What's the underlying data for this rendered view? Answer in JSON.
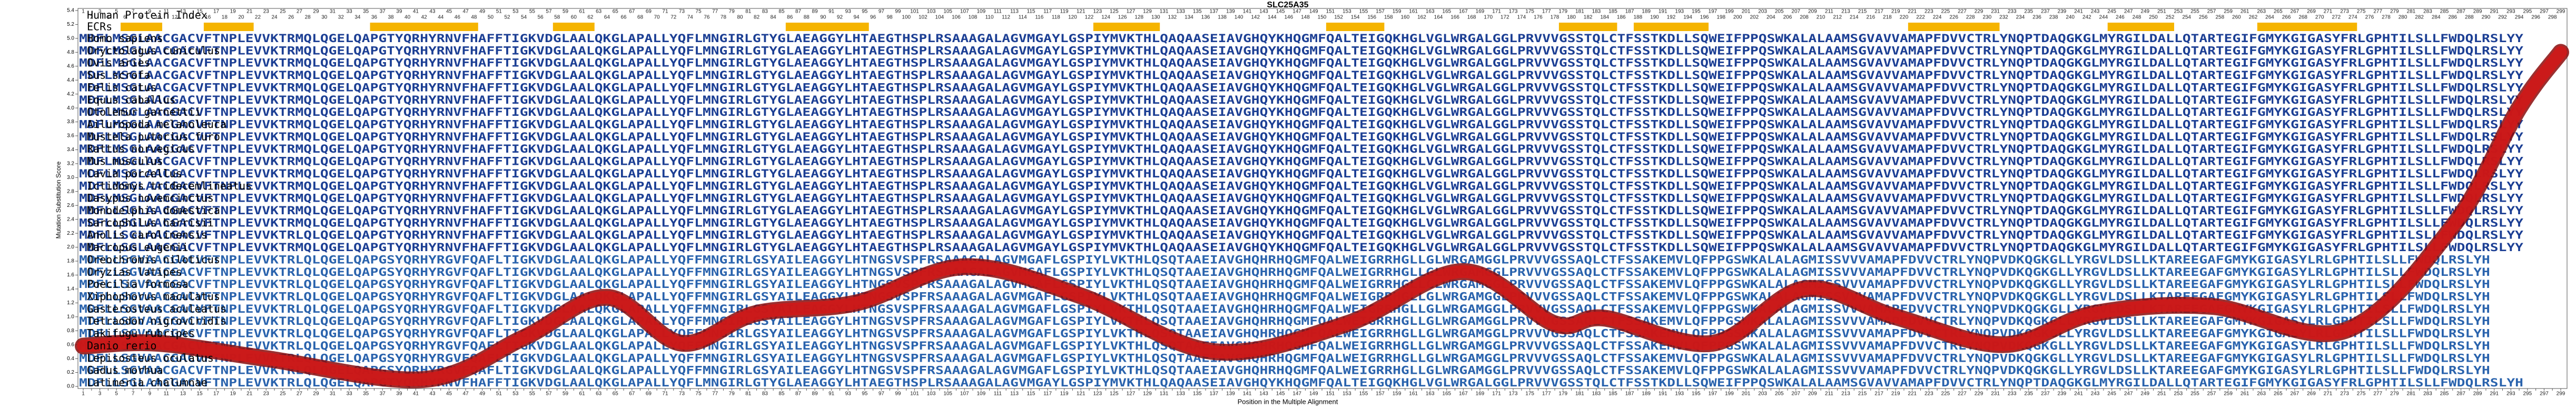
{
  "chart_data": {
    "type": "line",
    "title": "SLC25A35",
    "row_labels": [
      "Human Protein Index",
      "ECRs"
    ],
    "xlabel": "Position in the Multiple Alignment",
    "ylabel": "Mutation Substitution Score",
    "xlim": [
      1,
      299
    ],
    "ylim": [
      0,
      5.4
    ],
    "yticks": [
      {
        "value": 0,
        "label": "0.0"
      },
      {
        "value": 0.2,
        "label": "0.2"
      },
      {
        "value": 0.4,
        "label": "0.4"
      },
      {
        "value": 0.6,
        "label": "0.6"
      },
      {
        "value": 0.8,
        "label": "0.8"
      },
      {
        "value": 1,
        "label": "1.0"
      },
      {
        "value": 1.2,
        "label": "1.2"
      },
      {
        "value": 1.4,
        "label": "1.4"
      },
      {
        "value": 1.6,
        "label": "1.6"
      },
      {
        "value": 1.8,
        "label": "1.8"
      },
      {
        "value": 2,
        "label": "2.0"
      },
      {
        "value": 2.2,
        "label": "2.2"
      },
      {
        "value": 2.4,
        "label": "2.4"
      },
      {
        "value": 2.6,
        "label": "2.6"
      },
      {
        "value": 2.8,
        "label": "2.8"
      },
      {
        "value": 3,
        "label": "3.0"
      },
      {
        "value": 3.2,
        "label": "3.2"
      },
      {
        "value": 3.4,
        "label": "3.4"
      },
      {
        "value": 3.6,
        "label": "3.6"
      },
      {
        "value": 3.8,
        "label": "3.8"
      },
      {
        "value": 4,
        "label": "4.0"
      },
      {
        "value": 4.2,
        "label": "4.2"
      },
      {
        "value": 4.4,
        "label": "4.4"
      },
      {
        "value": 4.6,
        "label": "4.6"
      },
      {
        "value": 4.8,
        "label": "4.8"
      },
      {
        "value": 5,
        "label": "5.0"
      },
      {
        "value": 5.2,
        "label": "5.2"
      },
      {
        "value": 5.4,
        "label": "5.4"
      }
    ],
    "xticks": [
      1,
      2,
      3,
      4,
      5,
      6,
      7,
      8,
      9,
      10,
      11,
      12,
      13,
      14,
      15,
      16,
      17,
      18,
      19,
      20,
      21,
      22,
      23,
      24,
      25,
      26,
      27,
      28,
      29,
      30,
      31,
      32,
      33,
      34,
      35,
      36,
      37,
      38,
      39,
      40,
      41,
      42,
      43,
      44,
      45,
      46,
      47,
      48,
      49,
      50,
      51,
      52,
      53,
      54,
      55,
      56,
      57,
      58,
      59,
      60,
      61,
      62,
      63,
      64,
      65,
      66,
      67,
      68,
      69,
      70,
      71,
      72,
      73,
      74,
      75,
      76,
      77,
      78,
      79,
      80,
      81,
      82,
      83,
      84,
      85,
      86,
      87,
      88,
      89,
      90,
      91,
      92,
      93,
      94,
      95,
      96,
      97,
      98,
      99,
      100,
      101,
      102,
      103,
      104,
      105,
      106,
      107,
      108,
      109,
      110,
      111,
      112,
      113,
      114,
      115,
      116,
      117,
      118,
      119,
      120,
      121,
      122,
      123,
      124,
      125,
      126,
      127,
      128,
      129,
      130,
      131,
      132,
      133,
      134,
      135,
      136,
      137,
      138,
      139,
      140,
      141,
      142,
      143,
      144,
      145,
      146,
      147,
      148,
      149,
      150,
      151,
      152,
      153,
      154,
      155,
      156,
      157,
      158,
      159,
      160,
      161,
      162,
      163,
      164,
      165,
      166,
      167,
      168,
      169,
      170,
      171,
      172,
      173,
      174,
      175,
      176,
      177,
      178,
      179,
      180,
      181,
      182,
      183,
      184,
      185,
      186,
      187,
      188,
      189,
      190,
      191,
      192,
      193,
      194,
      195,
      196,
      197,
      198,
      199,
      200,
      201,
      202,
      203,
      204,
      205,
      206,
      207,
      208,
      209,
      210,
      211,
      212,
      213,
      214,
      215,
      216,
      217,
      218,
      219,
      220,
      221,
      222,
      223,
      224,
      225,
      226,
      227,
      228,
      229,
      230,
      231,
      232,
      233,
      234,
      235,
      236,
      237,
      238,
      239,
      240,
      241,
      242,
      243,
      244,
      245,
      246,
      247,
      248,
      249,
      250,
      251,
      252,
      253,
      254,
      255,
      256,
      257,
      258,
      259,
      260,
      261,
      262,
      263,
      264,
      265,
      266,
      267,
      268,
      269,
      270,
      271,
      272,
      273,
      274,
      275,
      276,
      277,
      278,
      279,
      280,
      281,
      282,
      283,
      284,
      285,
      286,
      287,
      288,
      289,
      290,
      291,
      292,
      293,
      294,
      295,
      296,
      297,
      298,
      299
    ],
    "ecrs": [
      [
        6,
        10
      ],
      [
        16,
        21
      ],
      [
        36,
        48
      ],
      [
        58,
        62
      ],
      [
        86,
        95
      ],
      [
        123,
        130
      ],
      [
        151,
        157
      ],
      [
        179,
        185
      ],
      [
        188,
        196
      ],
      [
        221,
        231
      ],
      [
        245,
        252
      ],
      [
        263,
        274
      ]
    ],
    "ecr_color": "#f5b400",
    "species": [
      "Homo sapiens",
      "Oryctolagus cuniculus",
      "Ovis aries",
      "Sus scrofa",
      "Felis catus",
      "Equus caballus",
      "Otolemur garnettii",
      "Ailuropoda melanoleuca",
      "Mustela putorius furo",
      "Rattus norvegicus",
      "Mus musculus",
      "Cavia porcellus",
      "Ictidomys tridecemlineatus",
      "Dasypus novemcinctus",
      "Monodelphis domestica",
      "Sarcophilus harrisii",
      "Anolis carolinensis",
      "Macropus eugenii",
      "Oreochromis niloticus",
      "Oryzias latipes",
      "Poecilia formosa",
      "Xiphophorus maculatus",
      "Gasterosteus aculeatus",
      "Tetraodon nigroviridis",
      "Takifugu rubripes",
      "Danio rerio",
      "Lepisosteus oculatus",
      "Gadus morhua",
      "Latimeria chalumnae"
    ],
    "sequences": [
      "MDFLMSGLAACGACVFTNPLEVVKTRMQLQGELQAPGTYQRHYRNVFHAFFTIGKVDGLAALQKGLAPALLYQFLMNGIRLGTYGLAEAGGYLHTAEGTHSPLRSAAAGALAGVMGAYLGSPIYMVKTHLQAQAASEIAVGHQYKHQGMFQALTEIGQKHGLVGLWRGALGGLPRVVVGSSTQLCTFSSTKDLLSQWEIFPPQSWKALALAAMSGVAVVAMAPFDVVCTRLYNQPTDAQGKGLMYRGILDALLQTARTEGIFGMYKGIGASYFRLGPHTILSLLFWDQLRSLYY",
      "MDFLMSGLAACGACVFTNPLEVVKTRMQLQGELQAPGTYQRHYRNVFHAFFTIGKVDGLAALQKGLAPALLYQFLMNGIRLGTYGLAEAGGYLHTAEGTHSPLRSAAAGALAGVMGAYLGSPIYMVKTHLQAQAASEIAVGHQYKHQGMFQALTEIGQKHGLVGLWRGALGGLPRVVVGSSTQLCTFSSTKDLLSQWEIFPPQSWKALALAAMSGVAVVAMAPFDVVCTRLYNQPTDAQGKGLMYRGILDALLQTARTEGIFGMYKGIGASYFRLGPHTILSLLFWDQLRSLYY",
      "MDFLMSGLAACGACVFTNPLEVVKTRMQLQGELQAPGTYQRHYRNVFHAFFTIGKVDGLAALQKGLAPALLYQFLMNGIRLGTYGLAEAGGYLHTAEGTHSPLRSAAAGALAGVMGAYLGSPIYMVKTHLQAQAASEIAVGHQYKHQGMFQALTEIGQKHGLVGLWRGALGGLPRVVVGSSTQLCTFSSTKDLLSQWEIFPPQSWKALALAAMSGVAVVAMAPFDVVCTRLYNQPTDAQGKGLMYRGILDALLQTARTEGIFGMYKGIGASYFRLGPHTILSLLFWDQLRSLYY",
      "MDFLMSGLAACGACVFTNPLEVVKTRMQLQGELQAPGTYQRHYRNVFHAFFTIGKVDGLAALQKGLAPALLYQFLMNGIRLGTYGLAEAGGYLHTAEGTHSPLRSAAAGALAGVMGAYLGSPIYMVKTHLQAQAASEIAVGHQYKHQGMFQALTEIGQKHGLVGLWRGALGGLPRVVVGSSTQLCTFSSTKDLLSQWEIFPPQSWKALALAAMSGVAVVAMAPFDVVCTRLYNQPTDAQGKGLMYRGILDALLQTARTEGIFGMYKGIGASYFRLGPHTILSLLFWDQLRSLYY",
      "MDFLMSGLAACGACVFTNPLEVVKTRMQLQGELQAPGTYQRHYRNVFHAFFTIGKVDGLAALQKGLAPALLYQFLMNGIRLGTYGLAEAGGYLHTAEGTHSPLRSAAAGALAGVMGAYLGSPIYMVKTHLQAQAASEIAVGHQYKHQGMFQALTEIGQKHGLVGLWRGALGGLPRVVVGSSTQLCTFSSTKDLLSQWEIFPPQSWKALALAAMSGVAVVAMAPFDVVCTRLYNQPTDAQGKGLMYRGILDALLQTARTEGIFGMYKGIGASYFRLGPHTILSLLFWDQLRSLYY",
      "MDFLMSGLAACGACVFTNPLEVVKTRMQLQGELQAPGTYQRHYRNVFHAFFTIGKVDGLAALQKGLAPALLYQFLMNGIRLGTYGLAEAGGYLHTAEGTHSPLRSAAAGALAGVMGAYLGSPIYMVKTHLQAQAASEIAVGHQYKHQGMFQALTEIGQKHGLVGLWRGALGGLPRVVVGSSTQLCTFSSTKDLLSQWEIFPPQSWKALALAAMSGVAVVAMAPFDVVCTRLYNQPTDAQGKGLMYRGILDALLQTARTEGIFGMYKGIGASYFRLGPHTILSLLFWDQLRSLYY",
      "MDFLMSGLAACGACVFTNPLEVVKTRMQLQGELQAPGTYQRHYRNVFHAFFTIGKVDGLAALQKGLAPALLYQFLMNGIRLGTYGLAEAGGYLHTAEGTHSPLRSAAAGALAGVMGAYLGSPIYMVKTHLQAQAASEIAVGHQYKHQGMFQALTEIGQKHGLVGLWRGALGGLPRVVVGSSTQLCTFSSTKDLLSQWEIFPPQSWKALALAAMSGVAVVAMAPFDVVCTRLYNQPTDAQGKGLMYRGILDALLQTARTEGIFGMYKGIGASYFRLGPHTILSLLFWDQLRSLYY",
      "MDFLMSGLAACGACVFTNPLEVVKTRMQLQGELQAPGTYQRHYRNVFHAFFTIGKVDGLAALQKGLAPALLYQFLMNGIRLGTYGLAEAGGYLHTAEGTHSPLRSAAAGALAGVMGAYLGSPIYMVKTHLQAQAASEIAVGHQYKHQGMFQALTEIGQKHGLVGLWRGALGGLPRVVVGSSTQLCTFSSTKDLLSQWEIFPPQSWKALALAAMSGVAVVAMAPFDVVCTRLYNQPTDAQGKGLMYRGILDALLQTARTEGIFGMYKGIGASYFRLGPHTILSLLFWDQLRSLYY",
      "MDFLMSGLAACGACVFTNPLEVVKTRMQLQGELQAPGTYQRHYRNVFHAFFTIGKVDGLAALQKGLAPALLYQFLMNGIRLGTYGLAEAGGYLHTAEGTHSPLRSAAAGALAGVMGAYLGSPIYMVKTHLQAQAASEIAVGHQYKHQGMFQALTEIGQKHGLVGLWRGALGGLPRVVVGSSTQLCTFSSTKDLLSQWEIFPPQSWKALALAAMSGVAVVAMAPFDVVCTRLYNQPTDAQGKGLMYRGILDALLQTARTEGIFGMYKGIGASYFRLGPHTILSLLFWDQLRSLYY",
      "MDFLMSGLAACGACVFTNPLEVVKTRMQLQGELQAPGTYQRHYRNVFHAFFTIGKVDGLAALQKGLAPALLYQFLMNGIRLGTYGLAEAGGYLHTAEGTHSPLRSAAAGALAGVMGAYLGSPIYMVKTHLQAQAASEIAVGHQYKHQGMFQALTEIGQKHGLVGLWRGALGGLPRVVVGSSTQLCTFSSTKDLLSQWEIFPPQSWKALALAAMSGVAVVAMAPFDVVCTRLYNQPTDAQGKGLMYRGILDALLQTARTEGIFGMYKGIGASYFRLGPHTILSLLFWDQLRSLYY",
      "MDFLMSGLAACGACVFTNPLEVVKTRMQLQGELQAPGTYQRHYRNVFHAFFTIGKVDGLAALQKGLAPALLYQFLMNGIRLGTYGLAEAGGYLHTAEGTHSPLRSAAAGALAGVMGAYLGSPIYMVKTHLQAQAASEIAVGHQYKHQGMFQALTEIGQKHGLVGLWRGALGGLPRVVVGSSTQLCTFSSTKDLLSQWEIFPPQSWKALALAAMSGVAVVAMAPFDVVCTRLYNQPTDAQGKGLMYRGILDALLQTARTEGIFGMYKGIGASYFRLGPHTILSLLFWDQLRSLYY",
      "MDFLMSGLAACGACVFTNPLEVVKTRMQLQGELQAPGTYQRHYRNVFHAFFTIGKVDGLAALQKGLAPALLYQFLMNGIRLGTYGLAEAGGYLHTAEGTHSPLRSAAAGALAGVMGAYLGSPIYMVKTHLQAQAASEIAVGHQYKHQGMFQALTEIGQKHGLVGLWRGALGGLPRVVVGSSTQLCTFSSTKDLLSQWEIFPPQSWKALALAAMSGVAVVAMAPFDVVCTRLYNQPTDAQGKGLMYRGILDALLQTARTEGIFGMYKGIGASYFRLGPHTILSLLFWDQLRSLYY",
      "MDFLMSGLAACGACVFTNPLEVVKTRMQLQGELQAPGTYQRHYRNVFHAFFTIGKVDGLAALQKGLAPALLYQFLMNGIRLGTYGLAEAGGYLHTAEGTHSPLRSAAAGALAGVMGAYLGSPIYMVKTHLQAQAASEIAVGHQYKHQGMFQALTEIGQKHGLVGLWRGALGGLPRVVVGSSTQLCTFSSTKDLLSQWEIFPPQSWKALALAAMSGVAVVAMAPFDVVCTRLYNQPTDAQGKGLMYRGILDALLQTARTEGIFGMYKGIGASYFRLGPHTILSLLFWDQLRSLYY",
      "MDFLMSGLAACGACVFTNPLEVVKTRMQLQGELQAPGTYQRHYRNVFHAFFTIGKVDGLAALQKGLAPALLYQFLMNGIRLGTYGLAEAGGYLHTAEGTHSPLRSAAAGALAGVMGAYLGSPIYMVKTHLQAQAASEIAVGHQYKHQGMFQALTEIGQKHGLVGLWRGALGGLPRVVVGSSTQLCTFSSTKDLLSQWEIFPPQSWKALALAAMSGVAVVAMAPFDVVCTRLYNQPTDAQGKGLMYRGILDALLQTARTEGIFGMYKGIGASYFRLGPHTILSLLFWDQLRSLYY",
      "MDFLLSGLAACGACVFTNPLEVVKTRMQLQGELQAPGTYQRHYRNVFHAFFTIGKVDGLAALQKGLAPALLYQFLMNGIRLGTYGLAEAGGYLHTAEGTHSPLRSAAAGALAGVMGAYLGSPIYMVKTHLQAQAASEIAVGHQYKHQGMFQALTEIGQKHGLVGLWRGALGGLPRVVVGSSTQLCTFSSTKDLLSQWEIFPPQSWKALALAAMSGVAVVAMAPFDVVCTRLYNQPTDAQGKGLMYRGILDALLQTARTEGIFGMYKGIGASYFRLGPHTILSLLFWDQLRSLYY",
      "MDFLLSGLAACGACVFTNPLEVVKTRMQLQGELQAPGTYQRHYRNVFHAFFTIGKVDGLAALQKGLAPALLYQFLMNGIRLGTYGLAEAGGYLHTAEGTHSPLRSAAAGALAGVMGAYLGSPIYMVKTHLQAQAASEIAVGHQYKHQGMFQALTEIGQKHGLVGLWRGALGGLPRVVVGSSTQLCTFSSTKDLLSQWEIFPPQSWKALALAAMSGVAVVAMAPFDVVCTRLYNQPTDAQGKGLMYRGILDALLQTARTEGIFGMYKGIGASYFRLGPHTILSLLFWDQLRSLYY",
      "MDFLLSGLAACGACVFTNPLEVVKTRLQLQGELQAPGTYQRHYRNVFHAFFTIGKVDGLAALQKGLAPALLYQFLMNGIRLGTYGLAEAGGYLHTAEGTHSPLRSAAAGALAGVMGAYLGSPIYMVKTHLQAQAASEIAVGHQYKHQGMFQALTEIGQKHGLVGLWRGALGGLPRVVVGSSTQLCTFSSTKDLLSQWEIFPPQSWKALALAAMSGVAVVAMAPFDVVCTRLYNQPTDAQGKGLMYRGILDALLQTARTEGIFGMYKGIGASYFRLGPHTILSLLFWDQLRSLYY",
      "MDFLLSGLAACGACVFTNPLEVVKTRMQLQGELQAPGTYQRHYRNVFHAFFTIGKVDGLAALQKGLAPALLYQFLMNGIRLGTYGLAEAGGYLHTAEGTHSPLRSAAAGALAGVMGAYLGSPIYMVKTHLQAQAASEIAVGHQYKHQGMFQALTEIGQKHGLVGLWRGALGGLPRVVVGSSTQLCTFSSTKDLLSQWEIFPPQSWKALALAAMSGVAVVAMAPFDVVCTRLYNQPTDAQGKGLMYRGILDALLQTARTEGIFGMYKGIGASYFRLGPHTILSLLFWDQLRSLYY",
      "MDFLLSGVAACGACVFTNPLEVVKTRLQLQGELQAPGSYQRHYRGVFQAFLTIGKVDGLAALQKGLAPALLYQFFMNGIRLGSYAILEAGGYLHTNGSVSPFRSAAAGALAGVMGAFLGSPIYLVKTHLQSQTAAEIAVGHQHRHQGMFQALWEIGRRHGLLGLWRGAMGGLPRVVVGSSAQLCTFSSAKEMVLQFPPGSWKALALAGMISSVVVAMAPFDVVCTRLYNQPVDKQGKGLLYRGVLDSLLKTAREEGAFGMYKGIGASYLRLGPHTILSLLFWDQLRSLYH",
      "MDFLLSGVAACGACVFTNPLEVVKTRLQLQGELQAPGSYQRHYRGVFQAFLTIGKVDGLAALQKGLAPALLYQFFMNGIRLGSYAILEAGGYLHTNGSVSPFRSAAAGALAGVMGAFLGSPIYLVKTHLQSQTAAEIAVGHQHRHQGMFQALWEIGRRHGLLGLWRGAMGGLPRVVVGSSAQLCTFSSAKEMVLQFPPGSWKALALAGMISSVVVAMAPFDVVCTRLYNQPVDKQGKGLLYRGVLDSLLKTAREEGAFGMYKGIGASYLRLGPHTILSLLFWDQLRSLYH",
      "MDFLLSGVAACGACVFTNPLEVVKTRLQLQGELQAPGSYQRHYRGVFQAFLTIGKVDGLAALQKGLAPALLYQFFMNGIRLGSYAILEAGGYLHTNGSVSPFRSAAAGALAGVMGAFLGSPIYLVKTHLQSQTAAEIAVGHQHRHQGMFQALWEIGRRHGLLGLWRGAMGGLPRVVVGSSAQLCTFSSAKEMVLQFPPGSWKALALAGMISSVVVAMAPFDVVCTRLYNQPVDKQGKGLLYRGVLDSLLKTAREEGAFGMYKGIGASYLRLGPHTILSLLFWDQLRSLYH",
      "MDFLLSGVAACGACVFTNPLEVVKTRLQLQGELQAPGSYQRHYRGVFQAFLTIGKVDGLAALQKGLAPALLYQFFMNGIRLGSYAILEAGGYLHTNGSVSPFRSAAAGALAGVMGAFLGSPIYLVKTHLQSQTAAEIAVGHQHRHQGMFQALWEIGRRHGLLGLWRGAMGGLPRVVVGSSAQLCTFSSAKEMVLQFPPGSWKALALAGMISSVVVAMAPFDVVCTRLYNQPVDKQGKGLLYRGVLDSLLKTAREEGAFGMYKGIGASYLRLGPHTILSLLFWDQLRSLYH",
      "MDFLLSGVAACGACVFTNPLEVVKTRLQLQGELQAPGSYQRHYRGVFQAFLTIGKVDGLAALQKGLAPALLYQFFMNGIRLGSYAILEAGGYLHTNGSVSPFRSAAAGALAGVMGAFLGSPIYLVKTHLQSQTAAEIAVGHQHRHQGMFQALWEIGRRHGLLGLWRGAMGGLPRVVVGSSAQLCTFSSAKEMVLQFPPGSWKALALAGMISSVVVAMAPFDVVCTRLYNQPVDKQGKGLLYRGVLDSLLKTAREEGAFGMYKGIGASYLRLGPHTILSLLFWDQLRSLYH",
      "MDFLLSGVAACGACVFTNPLEVVKTRLQLQGELQAPGSYQRHYRGVFQAFLTIGKVDGLAALQKGLAPALLYQFFMNGIRLGSYAILEAGGYLHTNGSVSPFRSAAAGALAGVMGAFLGSPIYLVKTHLQSQTAAEIAVGHQHRHQGMFQALWEIGRRHGLLGLWRGAMGGLPRVVVGSSAQLCTFSSAKEMVLQFPPGSWKALALAGMISSVVVAMAPFDVVCTRLYNQPVDKQGKGLLYRGVLDSLLKTAREEGAFGMYKGIGASYLRLGPHTILSLLFWDQLRSLYH",
      "MDFLLSGVAACGACVFTNPLEVVKTRLQLQGELQAPGSYQRHYRGVFQAFLTIGKVDGLAALQKGLAPALLYQFFMNGIRLGSYAILEAGGYLHTNGSVSPFRSAAAGALAGVMGAFLGSPIYLVKTHLQSQTAAEIAVGHQHRHQGMFQALWEIGRRHGLLGLWRGAMGGLPRVVVGSSAQLCTFSSAKEMVLQFPPGSWKALALAGMISSVVVAMAPFDVVCTRLYNQPVDKQGKGLLYRGVLDSLLKTAREEGAFGMYKGIGASYLRLGPHTILSLLFWDQLRSLYH",
      "MDFLLSGVAACGACVFTNPLEVVKTRLQLQGELQAPGSYQRHYRGVFQAFLTIGKVDGLAALQKGLAPALLYQFFMNGIRLGSYAILEAGGYLHTNGSVSPFRSAAAGALAGVMGAFLGSPIYLVKTHLQSQTAAEIAVGHQHRHQGMFQALWEIGRRHGLLGLWRGAMGGLPRVVVGSSAQLCTFSSAKEMVLQFPPGSWKALALAGMISSVVVAMAPFDVVCTRLYNQPVDKQGKGLLYRGVLDSLLKTAREEGAFGMYKGIGASYLRLGPHTILSLLFWDQLRSLYH",
      "MDFLLSGVAACGACVFTNPLEVVKTRLQLQGELQAPGSYQRHYRGVFQAFLTIGKVDGLAALQKGLAPALLYQFFMNGIRLGSYAILEAGGYLHTNGSVSPFRSAAAGALAGVMGAFLGSPIYLVKTHLQSQTAAEIAVGHQHRHQGMFQALWEIGRRHGLLGLWRGAMGGLPRVVVGSSAQLCTFSSAKEMVLQFPPGSWKALALAGMISSVVVAMAPFDVVCTRLYNQPVDKQGKGLLYRGVLDSLLKTAREEGAFGMYKGIGASYLRLGPHTILSLLFWDQLRSLYH",
      "MDFLLSGVAACGACVFTNPLEVVKTRLQLQGELQAPGSYQRHYRGVFQAFLTIGKVDGLAALQKGLAPALLYQFFMNGIRLGSYAILEAGGYLHTNGSVSPFRSAAAGALAGVMGAFLGSPIYLVKTHLQSQTAAEIAVGHQHRHQGMFQALWEIGRRHGLLGLWRGAMGGLPRVVVGSSAQLCTFSSAKEMVLQFPPGSWKALALAGMISSVVVAMAPFDVVCTRLYNQPVDKQGKGLLYRGVLDSLLKTAREEGAFGMYKGIGASYLRLGPHTILSLLFWDQLRSLYH",
      "MDFLLSGLAACGACVFTNPLEVVKTRLQLQGELQAPGTYQRHYRNVFHAFFTIGKVDGLAALQKGLAPALLYQFLMNGIRLGTYGLAEAGGYLHTAEGTHSPLRSAAAGALAGVMGAYLGSPIYMVKTHLQAQAASEIAVGHQYKHQGMFQALTEIGQKHGLVGLWRGALGGLPRVVVGSSTQLCTFSSTKDLLSQWEIFPPQSWKALALAAMSGVAVVAMAPFDVVCTRLYNQPTDAQGKGLMYRGILDALLQTARTEGIFGMYKGIGASYFRLGPHTILSLLFWDQLRSLYH"
    ],
    "x": [
      1,
      10,
      23,
      42,
      54,
      64,
      73,
      82,
      94,
      107,
      121,
      137,
      153,
      167,
      178,
      184,
      197,
      208,
      219,
      232,
      243,
      257,
      273,
      286,
      294,
      299
    ],
    "values": [
      0.58,
      0.62,
      0.4,
      0.1,
      0.7,
      1.28,
      0.62,
      1.05,
      1.2,
      1.72,
      1.3,
      0.5,
      0.9,
      1.65,
      0.9,
      0.98,
      0.62,
      1.4,
      1.0,
      0.6,
      1.05,
      1.15,
      0.8,
      2.3,
      4.0,
      4.8
    ],
    "color": "#d01818"
  }
}
